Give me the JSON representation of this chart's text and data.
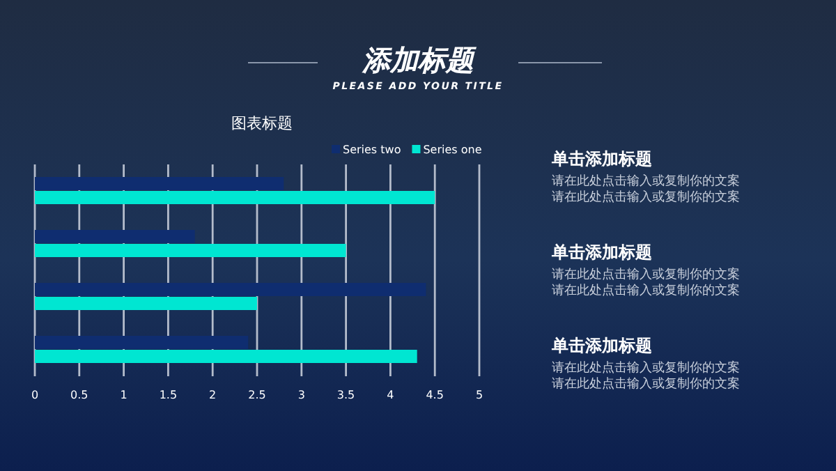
{
  "chart_data": {
    "type": "bar",
    "orientation": "horizontal",
    "title": "图表标题",
    "categories": [
      null,
      null,
      null,
      null
    ],
    "series": [
      {
        "name": "Series two",
        "color": "#0f2d70",
        "values": [
          2.8,
          1.8,
          4.4,
          2.4
        ]
      },
      {
        "name": "Series one",
        "color": "#00e6d2",
        "values": [
          4.5,
          3.5,
          2.5,
          4.3
        ]
      }
    ],
    "xlim": [
      0,
      5
    ],
    "xticks": [
      0,
      0.5,
      1,
      1.5,
      2,
      2.5,
      3,
      3.5,
      4,
      4.5,
      5
    ],
    "grid": "x",
    "legend": "top right",
    "annotations": [
      "添加标题",
      "PLEASE ADD YOUR TITLE",
      "单击添加标题",
      "请在此处点击输入或复制你的文案",
      "请在此处点击输入或复制你的文案",
      "单击添加标题",
      "请在此处点击输入或复制你的文案",
      "请在此处点击输入或复制你的文案",
      "单击添加标题",
      "请在此处点击输入或复制你的文案",
      "请在此处点击输入或复制你的文案"
    ]
  }
}
